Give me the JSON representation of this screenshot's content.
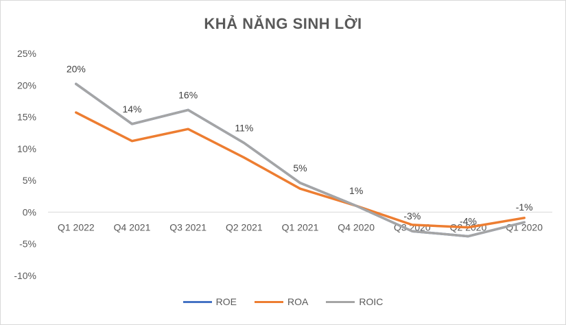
{
  "chart_data": {
    "type": "line",
    "title": "KHẢ NĂNG SINH LỜI",
    "categories": [
      "Q1 2022",
      "Q4 2021",
      "Q3 2021",
      "Q2 2021",
      "Q1 2021",
      "Q4 2020",
      "Q3 2020",
      "Q2 2020",
      "Q1 2020"
    ],
    "ylim": [
      -0.1,
      0.25
    ],
    "yticks": [
      0.25,
      0.2,
      0.15,
      0.1,
      0.05,
      0.0,
      -0.05,
      -0.1
    ],
    "ytick_labels": [
      "25%",
      "20%",
      "15%",
      "10%",
      "5%",
      "0%",
      "-5%",
      "-10%"
    ],
    "grid": false,
    "legend_position": "bottom",
    "series": [
      {
        "name": "ROE",
        "color": "#4472c4",
        "values": [
          0.202,
          0.139,
          0.161,
          0.109,
          0.046,
          0.01,
          -0.03,
          -0.038,
          -0.016
        ]
      },
      {
        "name": "ROA",
        "color": "#ed7d31",
        "values": [
          0.157,
          0.112,
          0.131,
          0.086,
          0.037,
          0.01,
          -0.02,
          -0.024,
          -0.009
        ]
      },
      {
        "name": "ROIC",
        "color": "#a5a5a5",
        "values": [
          0.202,
          0.139,
          0.161,
          0.109,
          0.046,
          0.01,
          -0.03,
          -0.038,
          -0.016
        ]
      }
    ],
    "data_labels": [
      "20%",
      "14%",
      "16%",
      "11%",
      "5%",
      "1%",
      "-3%",
      "-4%",
      "-1%"
    ]
  }
}
